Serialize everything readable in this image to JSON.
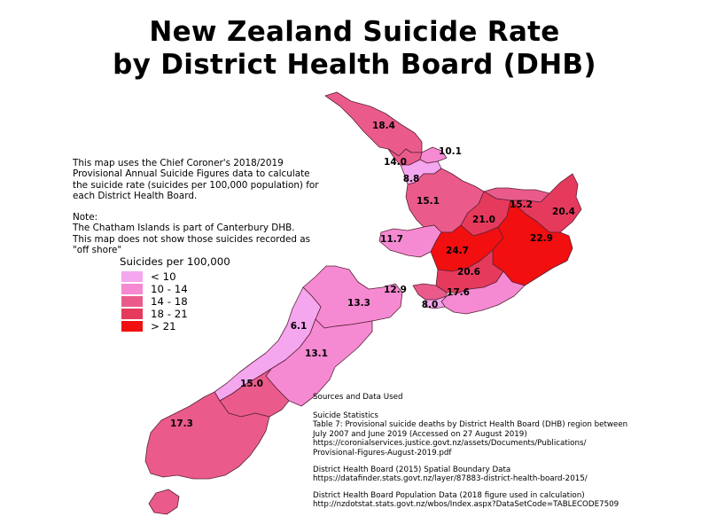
{
  "title_line1": "New Zealand Suicide Rate",
  "title_line2": "by District Health Board (DHB)",
  "note": {
    "intro": "This map uses the Chief Coroner's 2018/2019\nProvisional Annual Suicide Figures data to calculate\nthe suicide rate (suicides per 100,000 population) for\neach District Health Board.",
    "body": "Note:\nThe Chatham Islands is part of Canterbury DHB.\nThis map does not show those suicides recorded as\n\"off shore\""
  },
  "legend": {
    "title": "Suicides per 100,000",
    "items": [
      {
        "label": "< 10",
        "color": "#f4a6ee"
      },
      {
        "label": "10 - 14",
        "color": "#f58ad2"
      },
      {
        "label": "14 - 18",
        "color": "#ea5b8c"
      },
      {
        "label": "18 - 21",
        "color": "#e63a5c"
      },
      {
        "label": "> 21",
        "color": "#f20f0f"
      }
    ]
  },
  "regions": [
    {
      "name": "Northland",
      "rate": "18.4",
      "color": "#ea5b8c"
    },
    {
      "name": "Waitemata",
      "rate": "14.0",
      "color": "#ea5b8c"
    },
    {
      "name": "Auckland",
      "rate": "10.1",
      "color": "#f58ad2"
    },
    {
      "name": "Counties Manukau",
      "rate": "8.8",
      "color": "#f4a6ee"
    },
    {
      "name": "Waikato",
      "rate": "15.1",
      "color": "#ea5b8c"
    },
    {
      "name": "Bay of Plenty",
      "rate": "15.2",
      "color": "#ea5b8c"
    },
    {
      "name": "Lakes",
      "rate": "21.0",
      "color": "#e63a5c"
    },
    {
      "name": "Tairawhiti",
      "rate": "20.4",
      "color": "#e63a5c"
    },
    {
      "name": "Taranaki",
      "rate": "11.7",
      "color": "#f58ad2"
    },
    {
      "name": "Whanganui",
      "rate": "24.7",
      "color": "#f20f0f"
    },
    {
      "name": "Hawke's Bay",
      "rate": "22.9",
      "color": "#f20f0f"
    },
    {
      "name": "MidCentral",
      "rate": "20.6",
      "color": "#e63a5c"
    },
    {
      "name": "Capital and Coast",
      "rate": "12.9",
      "color": "#f58ad2"
    },
    {
      "name": "Wairarapa",
      "rate": "17.6",
      "color": "#ea5b8c"
    },
    {
      "name": "Hutt Valley",
      "rate": "8.0",
      "color": "#f4a6ee"
    },
    {
      "name": "Nelson Marlborough",
      "rate": "13.3",
      "color": "#f58ad2"
    },
    {
      "name": "West Coast",
      "rate": "6.1",
      "color": "#f4a6ee"
    },
    {
      "name": "Canterbury",
      "rate": "13.1",
      "color": "#f58ad2"
    },
    {
      "name": "South Canterbury",
      "rate": "15.0",
      "color": "#ea5b8c"
    },
    {
      "name": "Southern",
      "rate": "17.3",
      "color": "#ea5b8c"
    }
  ],
  "sources": {
    "heading": "Sources and Data Used",
    "suicide": "Suicide Statistics\nTable 7: Provisional suicide deaths by District Health Board (DHB) region between\nJuly 2007 and June 2019 (Accessed on 27 August 2019)\nhttps://coronialservices.justice.govt.nz/assets/Documents/Publications/\nProvisional-Figures-August-2019.pdf",
    "boundary": "District Health Board (2015) Spatial Boundary Data\nhttps://datafinder.stats.govt.nz/layer/87883-district-health-board-2015/",
    "population": "District Health Board Population Data (2018 figure used in calculation)\nhttp://nzdotstat.stats.govt.nz/wbos/Index.aspx?DataSetCode=TABLECODE7509"
  }
}
